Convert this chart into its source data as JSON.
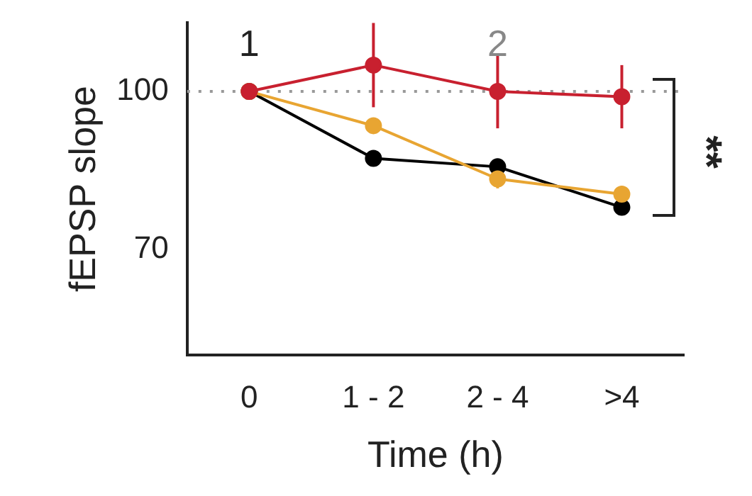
{
  "chart_data": {
    "type": "line",
    "xlabel": "Time (h)",
    "ylabel": "fEPSP slope",
    "categories": [
      "0",
      "1 - 2",
      "2 - 4",
      ">4"
    ],
    "series": [
      {
        "color": "#000000",
        "values": [
          100,
          87.3,
          85.7,
          78
        ],
        "errors": [
          null,
          1.5,
          1.5,
          1.2
        ]
      },
      {
        "color": "#e8a532",
        "values": [
          100,
          93.5,
          83.4,
          80.5
        ],
        "errors": [
          null,
          1.2,
          1.8,
          1.5
        ]
      },
      {
        "color": "#c8202f",
        "values": [
          100,
          105,
          100,
          99
        ],
        "errors": [
          null,
          8,
          7,
          6
        ]
      }
    ],
    "ylim": [
      50,
      113
    ],
    "yticks": [
      70,
      100
    ],
    "grid": false,
    "legend": false,
    "marker": "circle",
    "line_style": "solid",
    "ref_lines": [
      {
        "axis": "y",
        "value": 100,
        "color": "#999999",
        "line_style": "dotted"
      }
    ],
    "annotations": [
      "1",
      "2",
      "**"
    ]
  }
}
